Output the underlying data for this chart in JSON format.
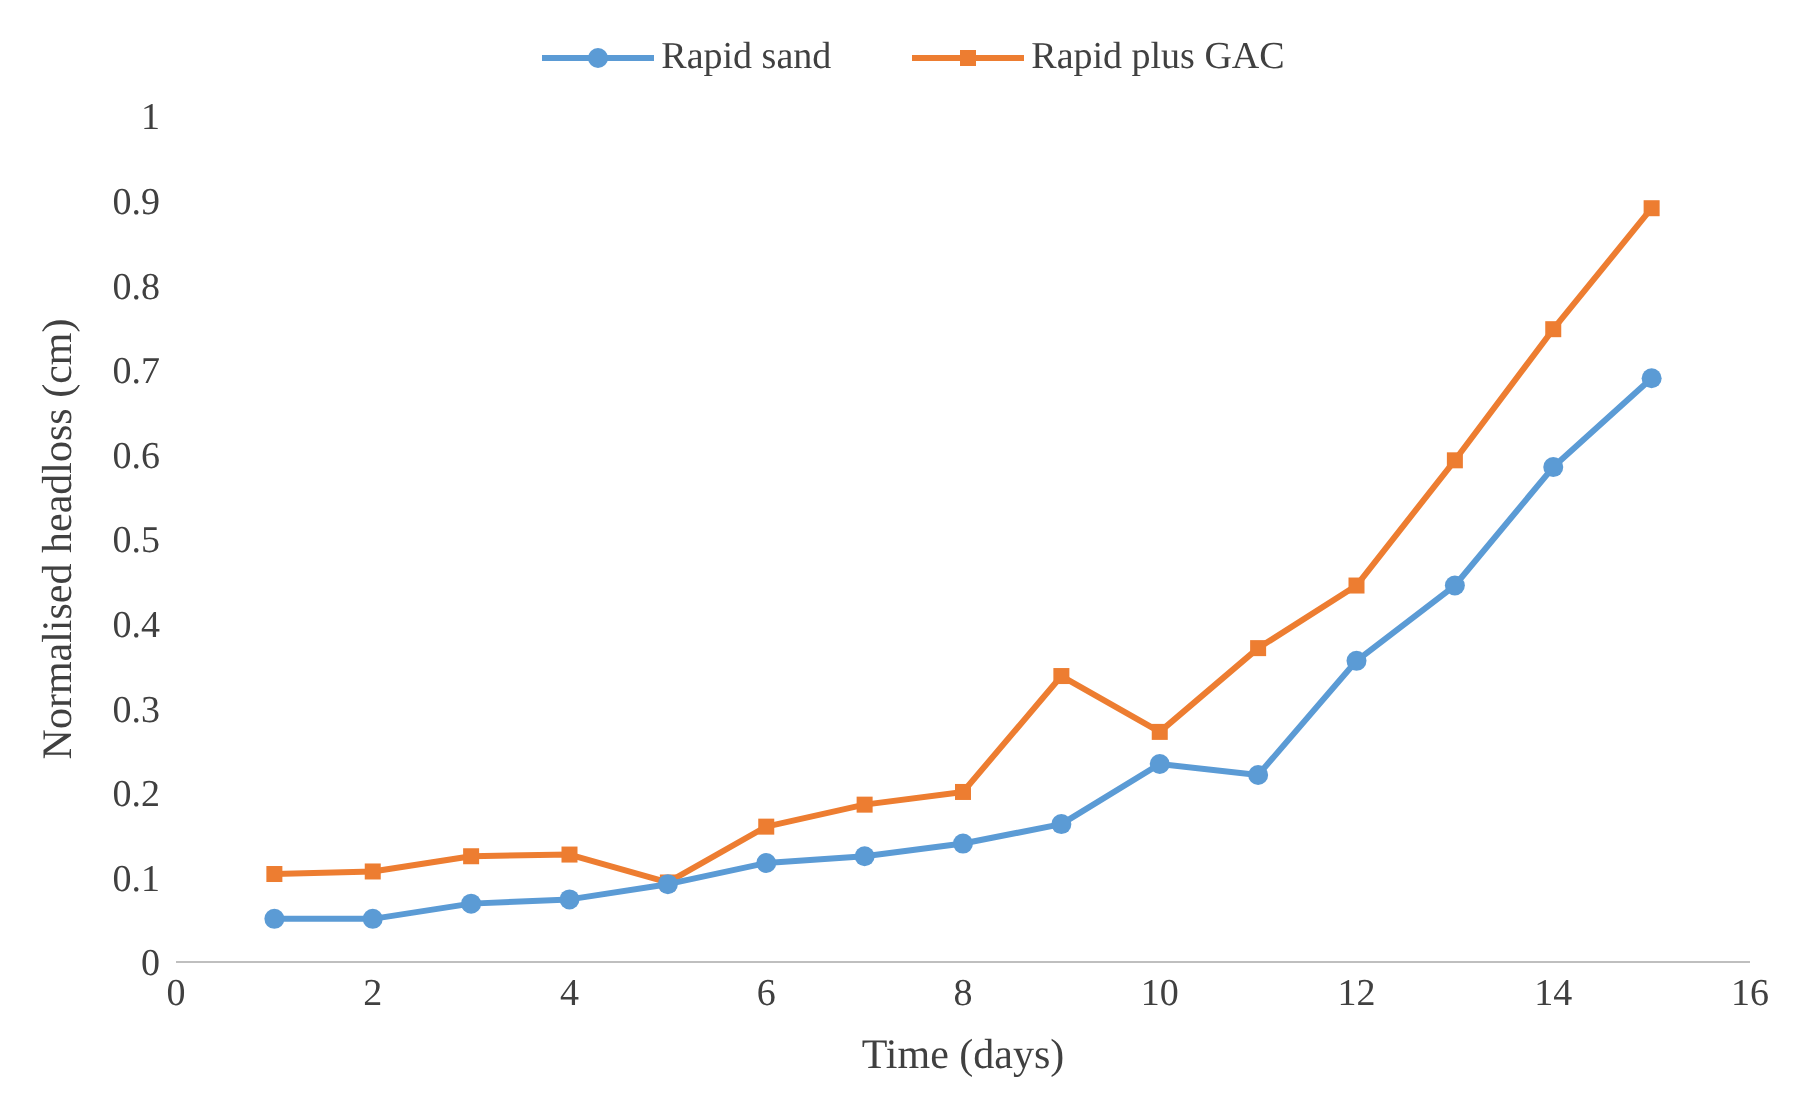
{
  "chart_data": {
    "type": "line",
    "xlabel": "Time (days)",
    "ylabel": "Normalised headloss (cm)",
    "x": [
      1,
      2,
      3,
      4,
      5,
      6,
      7,
      8,
      9,
      10,
      11,
      12,
      13,
      14,
      15
    ],
    "series": [
      {
        "name": "Rapid sand",
        "color": "#5b9bd5",
        "marker": "circle",
        "values": [
          0.051,
          0.051,
          0.069,
          0.074,
          0.092,
          0.117,
          0.125,
          0.14,
          0.163,
          0.234,
          0.221,
          0.356,
          0.445,
          0.585,
          0.69
        ]
      },
      {
        "name": "Rapid plus GAC",
        "color": "#ed7d31",
        "marker": "square",
        "values": [
          0.104,
          0.107,
          0.125,
          0.127,
          0.094,
          0.16,
          0.186,
          0.201,
          0.338,
          0.272,
          0.371,
          0.445,
          0.593,
          0.748,
          0.891
        ]
      }
    ],
    "xlim": [
      0,
      16
    ],
    "xticks": [
      0,
      2,
      4,
      6,
      8,
      10,
      12,
      14,
      16
    ],
    "ylim": [
      0,
      1
    ],
    "yticks": [
      0,
      0.1,
      0.2,
      0.3,
      0.4,
      0.5,
      0.6,
      0.7,
      0.8,
      0.9,
      1
    ],
    "grid": false,
    "legend": "top"
  }
}
